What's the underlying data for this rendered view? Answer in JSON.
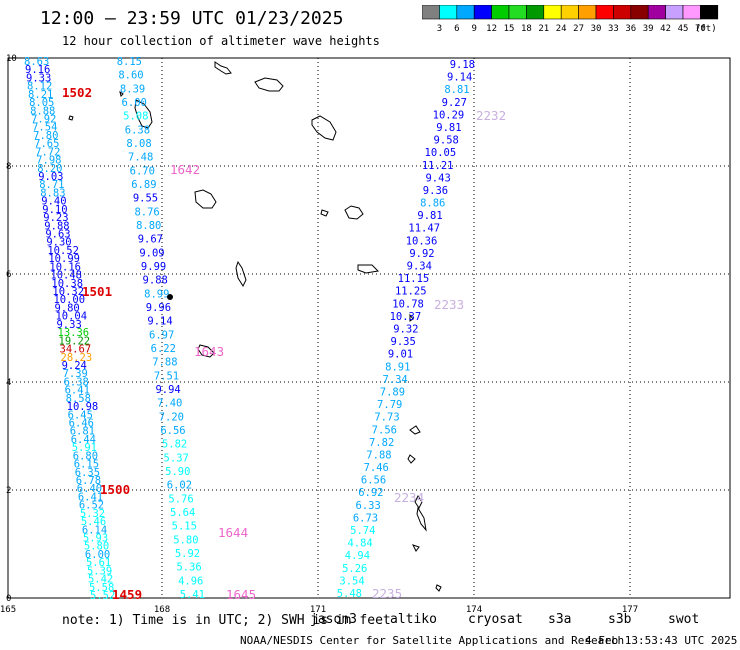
{
  "header": {
    "title": "12:00 — 23:59 UTC 01/23/2025",
    "subtitle": "12 hour collection of altimeter wave heights"
  },
  "colorbar": {
    "unit": "(ft)",
    "ticks": [
      "3",
      "6",
      "9",
      "12",
      "15",
      "18",
      "21",
      "24",
      "27",
      "30",
      "33",
      "36",
      "39",
      "42",
      "45",
      "70"
    ],
    "colors": [
      "#808080",
      "#00ffff",
      "#00a8ff",
      "#0000ff",
      "#00cc00",
      "#22dd22",
      "#009900",
      "#ffff00",
      "#ffd000",
      "#ffa000",
      "#ff0000",
      "#cc0000",
      "#880000",
      "#a000a0",
      "#c8a0ff",
      "#ff99ff",
      "#000000"
    ]
  },
  "axes": {
    "x_ticks": [
      "165",
      "168",
      "171",
      "174",
      "177"
    ],
    "y_ticks": [
      "0",
      "2",
      "4",
      "6",
      "8",
      "10"
    ]
  },
  "track_ids": [
    {
      "id": "1502",
      "color": "#dd0000"
    },
    {
      "id": "1501",
      "color": "#dd0000"
    },
    {
      "id": "1500",
      "color": "#dd0000"
    },
    {
      "id": "1459",
      "color": "#dd0000"
    },
    {
      "id": "1642",
      "color": "#ee66cc"
    },
    {
      "id": "1643",
      "color": "#ee66cc"
    },
    {
      "id": "1644",
      "color": "#ee66cc"
    },
    {
      "id": "1645",
      "color": "#ee66cc"
    },
    {
      "id": "2232",
      "color": "#c8b0e0"
    },
    {
      "id": "2233",
      "color": "#c8b0e0"
    },
    {
      "id": "2234",
      "color": "#c8b0e0"
    },
    {
      "id": "2235",
      "color": "#c8b0e0"
    }
  ],
  "track_a": {
    "values": [
      "8.63",
      "9.16",
      "9.33",
      "8.12",
      "8.21",
      "8.05",
      "8.88",
      "7.92",
      "7.54",
      "7.80",
      "7.65",
      "7.72",
      "7.98",
      "8.20",
      "9.03",
      "8.71",
      "8.83",
      "9.40",
      "9.10",
      "9.23",
      "9.88",
      "9.63",
      "9.30",
      "10.52",
      "10.99",
      "10.16",
      "10.48",
      "10.38",
      "10.32",
      "10.00",
      "9.80",
      "10.04",
      "9.33",
      "13.36",
      "19.22",
      "34.67",
      "28.23",
      "9.24",
      "7.39",
      "6.38",
      "6.41",
      "8.58",
      "10.98",
      "6.45",
      "6.46",
      "6.81",
      "6.44",
      "5.91",
      "6.80",
      "6.15",
      "6.35",
      "6.78",
      "6.40",
      "6.41",
      "6.52",
      "5.32",
      "5.46",
      "6.14",
      "5.93",
      "5.80",
      "6.00",
      "5.61",
      "5.39",
      "5.42",
      "5.58",
      "5.52"
    ]
  },
  "track_b": {
    "values": [
      "8.15",
      "8.60",
      "8.39",
      "6.00",
      "5.08",
      "6.38",
      "8.08",
      "7.48",
      "6.70",
      "6.89",
      "9.55",
      "8.76",
      "8.80",
      "9.67",
      "9.09",
      "9.99",
      "9.88",
      "8.99",
      "9.96",
      "9.14",
      "6.97",
      "6.22",
      "7.88",
      "7.51",
      "9.94",
      "7.40",
      "7.20",
      "6.56",
      "5.82",
      "5.37",
      "5.90",
      "6.02",
      "5.76",
      "5.64",
      "5.15",
      "5.80",
      "5.92",
      "5.36",
      "4.96",
      "5.41"
    ]
  },
  "track_c": {
    "values": [
      "9.18",
      "9.14",
      "8.81",
      "9.27",
      "10.29",
      "9.81",
      "9.58",
      "10.05",
      "11.21",
      "9.43",
      "9.36",
      "8.86",
      "9.81",
      "11.47",
      "10.36",
      "9.92",
      "9.34",
      "11.15",
      "11.25",
      "10.78",
      "10.37",
      "9.32",
      "9.35",
      "9.01",
      "8.91",
      "7.34",
      "7.89",
      "7.79",
      "7.73",
      "7.56",
      "7.82",
      "7.88",
      "7.46",
      "6.56",
      "6.92",
      "6.33",
      "6.73",
      "5.74",
      "4.84",
      "4.94",
      "5.26",
      "3.54",
      "5.48"
    ]
  },
  "footer": {
    "note": "note: 1) Time is in UTC; 2) SWH is in feet",
    "credit": "NOAA/NESDIS Center for Satellite Applications and Research",
    "timestamp": "4 Feb 13:53:43 UTC 2025"
  },
  "satellites": [
    {
      "name": "jason3",
      "color": "#009900"
    },
    {
      "name": "altiko",
      "color": "#ff9900"
    },
    {
      "name": "cryosat",
      "color": "#dd0000"
    },
    {
      "name": "s3a",
      "color": "#aa0000"
    },
    {
      "name": "s3b",
      "color": "#c8b0e0"
    },
    {
      "name": "swot",
      "color": "#ee88dd"
    }
  ]
}
